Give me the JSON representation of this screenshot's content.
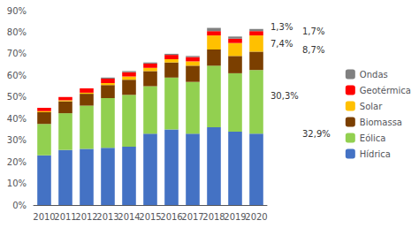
{
  "chart_data": {
    "type": "bar",
    "stacked": true,
    "categories": [
      "2010",
      "2011",
      "2012",
      "2013",
      "2014",
      "2015",
      "2016",
      "2017",
      "2018",
      "2019",
      "2020"
    ],
    "series": [
      {
        "name": "Hídrica",
        "color": "#4472C4",
        "values": [
          23.0,
          25.5,
          26.0,
          26.5,
          27.0,
          33.0,
          35.0,
          33.0,
          36.0,
          34.0,
          33.0
        ]
      },
      {
        "name": "Eólica",
        "color": "#92D050",
        "values": [
          14.5,
          17.0,
          20.0,
          23.0,
          24.0,
          22.0,
          24.0,
          24.0,
          28.5,
          27.0,
          29.5
        ]
      },
      {
        "name": "Biomassa",
        "color": "#7B3F00",
        "values": [
          5.5,
          5.5,
          5.5,
          6.0,
          7.0,
          7.0,
          7.0,
          7.5,
          7.5,
          8.0,
          8.5
        ]
      },
      {
        "name": "Solar",
        "color": "#FFC000",
        "values": [
          0.5,
          0.5,
          0.5,
          1.0,
          1.5,
          1.5,
          1.5,
          2.0,
          6.5,
          6.0,
          7.5
        ]
      },
      {
        "name": "Geotérmica",
        "color": "#FF0000",
        "values": [
          1.5,
          1.5,
          2.0,
          2.0,
          2.0,
          2.0,
          2.0,
          2.0,
          2.0,
          2.0,
          2.0
        ]
      },
      {
        "name": "Ondas",
        "color": "#808080",
        "values": [
          0.0,
          0.0,
          0.0,
          0.5,
          0.5,
          0.5,
          0.5,
          0.5,
          1.5,
          1.0,
          1.0
        ]
      }
    ],
    "ylim": [
      0,
      90
    ],
    "yticks": [
      {
        "value": 0,
        "label": "0%"
      },
      {
        "value": 10,
        "label": "10%"
      },
      {
        "value": 20,
        "label": "20%"
      },
      {
        "value": 30,
        "label": "30%"
      },
      {
        "value": 40,
        "label": "40%"
      },
      {
        "value": 50,
        "label": "50%"
      },
      {
        "value": 60,
        "label": "60%"
      },
      {
        "value": 70,
        "label": "70%"
      },
      {
        "value": 80,
        "label": "80%"
      },
      {
        "value": 90,
        "label": "90%"
      }
    ],
    "annotations": [
      {
        "text": "1,3%",
        "y": 82.5
      },
      {
        "text": "1,7%",
        "y": 80.5
      },
      {
        "text": "7,4%",
        "y": 74.5
      },
      {
        "text": "8,7%",
        "y": 72.0
      },
      {
        "text": "30,3%",
        "y": 50.5
      },
      {
        "text": "32,9%",
        "y": 33.0
      }
    ],
    "grid": false,
    "legend": "right"
  }
}
